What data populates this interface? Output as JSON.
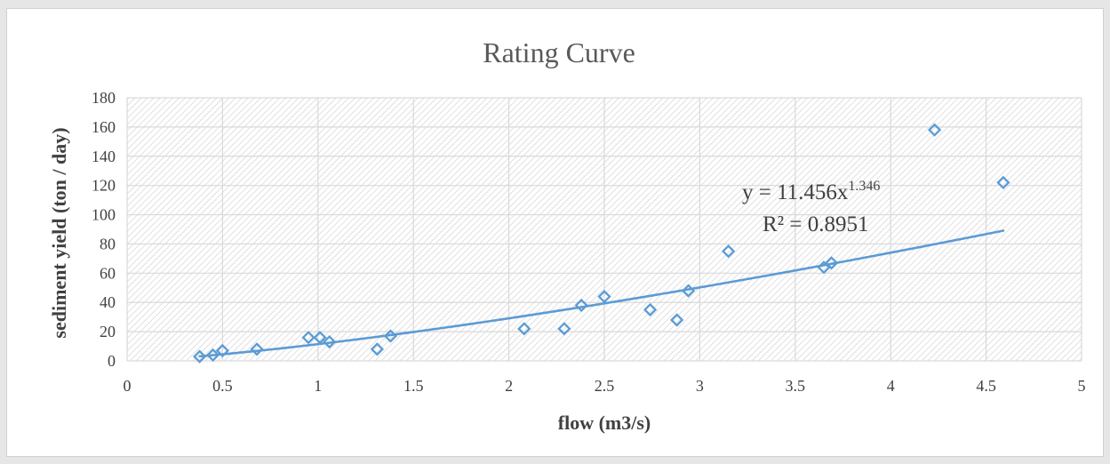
{
  "chart_data": {
    "type": "scatter",
    "title": "Rating Curve",
    "xlabel": "flow (m3/s)",
    "ylabel": "sediment yield (ton / day)",
    "xlim": [
      0,
      5
    ],
    "ylim": [
      0,
      180
    ],
    "xticks": [
      "0",
      "0.5",
      "1",
      "1.5",
      "2",
      "2.5",
      "3",
      "3.5",
      "4",
      "4.5",
      "5"
    ],
    "yticks": [
      "0",
      "20",
      "40",
      "60",
      "80",
      "100",
      "120",
      "140",
      "160",
      "180"
    ],
    "grid": true,
    "legend": "none",
    "series": [
      {
        "marker": "diamond-open",
        "color": "#5b9bd5",
        "x": [
          0.38,
          0.45,
          0.5,
          0.68,
          0.95,
          1.01,
          1.06,
          1.31,
          1.38,
          2.08,
          2.29,
          2.38,
          2.5,
          2.74,
          2.88,
          2.94,
          3.15,
          3.65,
          3.69,
          4.23,
          4.59
        ],
        "y": [
          3,
          4,
          7,
          8,
          16,
          16,
          13,
          8,
          17,
          22,
          22,
          38,
          44,
          35,
          28,
          48,
          75,
          64,
          67,
          158,
          122
        ]
      }
    ],
    "trendline": {
      "type": "power",
      "coefficient": 11.456,
      "exponent": 1.346,
      "x_range": [
        0.38,
        4.59
      ],
      "color": "#5b9bd5",
      "equation_prefix": "y = 11.456x",
      "equation_exponent": "1.346",
      "r_squared_label": "R² = 0.8951"
    },
    "colors": {
      "marker": "#5b9bd5",
      "gridline": "#d9d9d9",
      "plot_hatch": "#d0d0d0"
    }
  }
}
